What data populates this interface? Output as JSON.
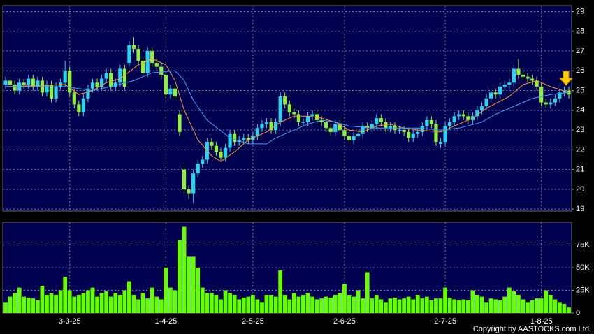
{
  "chart_data": [
    {
      "type": "candlestick",
      "up_color": "#2ad4f0",
      "down_color": "#8ef23c",
      "grid": true,
      "ylim": [
        18.9,
        29.3
      ],
      "yticks": [
        19,
        20,
        21,
        22,
        23,
        24,
        25,
        26,
        27,
        28,
        29
      ],
      "open": [
        25.3,
        25.5,
        25.3,
        25.0,
        25.4,
        25.3,
        25.6,
        25.2,
        25.5,
        24.9,
        25.3,
        24.6,
        25.2,
        25.4,
        26.0,
        24.9,
        24.3,
        23.9,
        24.6,
        25.1,
        25.4,
        25.2,
        25.6,
        25.9,
        25.2,
        25.4,
        26.1,
        26.4,
        27.3,
        27.1,
        26.5,
        25.9,
        27.0,
        26.4,
        26.2,
        25.8,
        24.8,
        25.1,
        23.8,
        21.0,
        20.0,
        19.8,
        20.8,
        21.3,
        21.5,
        22.4,
        22.2,
        21.9,
        21.6,
        22.1,
        22.8,
        22.4,
        22.5,
        22.6,
        22.5,
        22.7,
        23.1,
        23.3,
        23.4,
        23.0,
        23.4,
        24.7,
        24.3,
        23.9,
        23.8,
        23.4,
        23.4,
        23.7,
        23.8,
        23.5,
        23.4,
        23.1,
        22.9,
        23.3,
        23.0,
        22.7,
        22.5,
        22.7,
        22.8,
        23.2,
        23.1,
        23.3,
        23.6,
        23.4,
        23.1,
        23.2,
        23.0,
        23.0,
        22.9,
        22.6,
        22.8,
        22.9,
        23.2,
        23.5,
        23.3,
        22.3,
        22.4,
        23.2,
        23.4,
        23.7,
        23.8,
        23.7,
        23.5,
        23.7,
        24.0,
        24.2,
        24.6,
        24.9,
        24.8,
        25.2,
        25.3,
        25.4,
        26.1,
        25.8,
        25.7,
        25.6,
        25.5,
        25.2,
        24.4,
        24.3,
        24.4,
        24.6,
        24.9,
        25.0
      ],
      "high": [
        25.7,
        25.7,
        25.5,
        25.6,
        25.6,
        25.8,
        25.8,
        25.7,
        25.7,
        25.5,
        25.5,
        25.4,
        25.6,
        26.5,
        26.2,
        25.1,
        24.5,
        24.8,
        25.3,
        25.6,
        25.6,
        25.8,
        26.1,
        26.1,
        25.6,
        26.3,
        26.3,
        27.5,
        27.7,
        27.3,
        26.7,
        27.2,
        27.2,
        26.6,
        26.4,
        26.0,
        25.3,
        25.3,
        24.0,
        21.2,
        20.2,
        21.0,
        21.5,
        21.7,
        22.6,
        22.6,
        22.4,
        22.1,
        22.3,
        23.0,
        23.0,
        22.7,
        22.8,
        22.8,
        22.9,
        23.3,
        23.5,
        23.6,
        23.6,
        23.6,
        24.9,
        24.9,
        24.5,
        24.1,
        24.0,
        23.6,
        23.9,
        24.0,
        24.0,
        23.7,
        23.6,
        23.3,
        23.5,
        23.5,
        23.2,
        22.9,
        22.9,
        23.0,
        23.4,
        23.4,
        23.5,
        23.8,
        23.8,
        23.6,
        23.4,
        23.4,
        23.2,
        23.2,
        23.1,
        23.0,
        23.1,
        23.4,
        23.7,
        23.7,
        23.5,
        22.6,
        23.4,
        23.6,
        23.9,
        24.0,
        24.0,
        23.9,
        23.9,
        24.2,
        24.4,
        24.8,
        25.1,
        25.1,
        25.4,
        25.5,
        25.6,
        26.3,
        26.6,
        26.0,
        25.9,
        25.8,
        25.7,
        25.4,
        24.6,
        24.6,
        24.8,
        25.1,
        25.2,
        25.2
      ],
      "low": [
        25.1,
        25.1,
        24.8,
        24.8,
        25.1,
        25.1,
        25.0,
        25.0,
        24.7,
        24.7,
        24.4,
        24.4,
        25.0,
        25.2,
        24.7,
        24.1,
        23.7,
        23.7,
        24.4,
        24.9,
        25.0,
        25.0,
        25.4,
        25.0,
        25.0,
        25.2,
        25.0,
        26.2,
        26.9,
        26.3,
        25.7,
        25.7,
        26.2,
        26.0,
        25.6,
        24.6,
        24.6,
        24.5,
        22.7,
        19.8,
        19.5,
        19.3,
        20.6,
        21.1,
        21.3,
        22.0,
        21.7,
        21.4,
        21.4,
        21.9,
        22.2,
        22.2,
        22.3,
        22.3,
        22.3,
        22.5,
        22.9,
        23.1,
        22.8,
        22.8,
        23.2,
        24.1,
        23.7,
        23.6,
        23.2,
        23.2,
        23.2,
        23.5,
        23.3,
        23.2,
        22.9,
        22.7,
        22.7,
        22.8,
        22.5,
        22.3,
        22.3,
        22.5,
        22.6,
        22.9,
        22.9,
        23.1,
        23.2,
        22.9,
        22.9,
        22.8,
        22.8,
        22.7,
        22.4,
        22.4,
        22.6,
        22.7,
        23.0,
        23.1,
        22.2,
        22.1,
        22.2,
        23.0,
        23.2,
        23.5,
        23.5,
        23.3,
        23.3,
        23.5,
        23.8,
        24.0,
        24.4,
        24.6,
        24.6,
        25.0,
        25.1,
        25.2,
        25.6,
        25.5,
        25.4,
        25.3,
        25.0,
        24.2,
        24.1,
        24.1,
        24.2,
        24.4,
        24.7,
        24.6
      ],
      "close": [
        25.5,
        25.3,
        25.0,
        25.4,
        25.3,
        25.6,
        25.2,
        25.5,
        24.9,
        25.3,
        24.6,
        25.2,
        25.4,
        26.0,
        24.9,
        24.3,
        23.9,
        24.6,
        25.1,
        25.4,
        25.2,
        25.6,
        25.9,
        25.2,
        25.4,
        26.1,
        25.2,
        27.3,
        27.1,
        26.5,
        25.9,
        27.0,
        26.4,
        26.2,
        25.8,
        24.8,
        25.1,
        24.7,
        22.9,
        20.0,
        19.8,
        20.8,
        21.3,
        21.5,
        22.4,
        22.2,
        21.9,
        21.6,
        22.1,
        22.8,
        22.4,
        22.5,
        22.6,
        22.5,
        22.7,
        23.1,
        23.3,
        23.4,
        23.0,
        23.4,
        24.7,
        24.3,
        23.9,
        23.8,
        23.4,
        23.4,
        23.7,
        23.8,
        23.5,
        23.4,
        23.1,
        22.9,
        23.3,
        23.0,
        22.7,
        22.5,
        22.7,
        22.8,
        23.2,
        23.1,
        23.3,
        23.6,
        23.4,
        23.1,
        23.2,
        23.0,
        23.0,
        22.9,
        22.6,
        22.8,
        22.9,
        23.2,
        23.5,
        23.3,
        22.4,
        22.4,
        23.2,
        23.4,
        23.7,
        23.8,
        23.7,
        23.5,
        23.7,
        24.0,
        24.2,
        24.6,
        24.9,
        24.8,
        25.2,
        25.3,
        25.4,
        26.1,
        25.8,
        25.7,
        25.6,
        25.5,
        25.2,
        24.4,
        24.3,
        24.4,
        24.6,
        24.9,
        25.0,
        24.8
      ],
      "lines": [
        {
          "color": "#ff9933",
          "x": [
            0,
            13,
            16,
            19,
            22,
            25,
            29,
            32,
            35,
            37,
            39,
            42,
            45,
            47,
            50,
            53,
            57,
            60,
            63,
            66,
            69,
            72,
            75,
            78,
            81,
            84,
            87,
            90,
            95,
            99,
            102,
            105,
            110,
            113,
            116,
            119,
            123
          ],
          "values": [
            25.2,
            25.3,
            24.8,
            25.0,
            25.4,
            25.6,
            26.3,
            26.6,
            26.3,
            25.5,
            24.0,
            22.5,
            21.7,
            21.4,
            21.9,
            22.5,
            22.9,
            23.4,
            23.7,
            23.7,
            23.6,
            23.4,
            23.0,
            22.9,
            23.2,
            23.3,
            23.1,
            23.0,
            22.9,
            23.3,
            23.6,
            24.1,
            24.7,
            25.3,
            25.5,
            25.2,
            24.9
          ]
        },
        {
          "color": "#3fa0ff",
          "x": [
            0,
            13,
            19,
            23,
            28,
            32,
            37,
            39,
            41,
            44,
            49,
            53,
            57,
            59,
            63,
            66,
            69,
            72,
            75,
            80,
            84,
            90,
            95,
            99,
            104,
            107,
            110,
            115,
            119,
            123
          ],
          "values": [
            25.2,
            25.2,
            25.0,
            25.2,
            25.5,
            25.9,
            26.0,
            25.5,
            24.5,
            23.5,
            22.6,
            22.3,
            22.3,
            22.6,
            23.0,
            23.3,
            23.5,
            23.4,
            23.2,
            23.1,
            23.1,
            23.1,
            23.0,
            23.1,
            23.4,
            23.8,
            24.1,
            24.6,
            24.8,
            24.9
          ]
        }
      ]
    },
    {
      "type": "bar",
      "color": "#66ff00",
      "grid": true,
      "ylim": [
        0,
        100
      ],
      "yticks": [
        0,
        {
          "value": 25,
          "label": "25K"
        },
        {
          "value": 50,
          "label": "50K"
        },
        {
          "value": 75,
          "label": "75K"
        }
      ],
      "categories": [
        null,
        null,
        null,
        null,
        null,
        null,
        null,
        null,
        null,
        null,
        null,
        null,
        null,
        null,
        "3-3-25",
        null,
        null,
        null,
        null,
        null,
        null,
        null,
        null,
        null,
        null,
        null,
        null,
        null,
        null,
        null,
        null,
        null,
        null,
        null,
        null,
        "1-4-25",
        null,
        null,
        null,
        null,
        null,
        null,
        null,
        null,
        null,
        null,
        null,
        null,
        null,
        null,
        null,
        null,
        null,
        null,
        "2-5-25",
        null,
        null,
        null,
        null,
        null,
        null,
        null,
        null,
        null,
        null,
        null,
        null,
        null,
        null,
        null,
        null,
        null,
        null,
        null,
        "2-6-25",
        null,
        null,
        null,
        null,
        null,
        null,
        null,
        null,
        null,
        null,
        null,
        null,
        null,
        null,
        null,
        null,
        null,
        null,
        null,
        null,
        null,
        "2-7-25",
        null,
        null,
        null,
        null,
        null,
        null,
        null,
        null,
        null,
        null,
        null,
        null,
        null,
        null,
        null,
        null,
        null,
        null,
        null,
        null,
        "1-8-25",
        null,
        null,
        null,
        null,
        null,
        null
      ],
      "values": [
        12,
        18,
        22,
        28,
        18,
        17,
        16,
        14,
        30,
        20,
        22,
        20,
        25,
        40,
        25,
        18,
        20,
        22,
        25,
        28,
        18,
        22,
        24,
        18,
        22,
        20,
        25,
        35,
        20,
        15,
        22,
        16,
        28,
        18,
        15,
        50,
        28,
        25,
        80,
        95,
        62,
        62,
        50,
        28,
        22,
        22,
        20,
        15,
        25,
        22,
        20,
        15,
        17,
        18,
        20,
        15,
        12,
        20,
        20,
        18,
        47,
        20,
        15,
        22,
        18,
        20,
        22,
        18,
        15,
        16,
        18,
        17,
        20,
        22,
        32,
        20,
        18,
        25,
        16,
        45,
        16,
        20,
        15,
        12,
        16,
        17,
        15,
        16,
        18,
        15,
        20,
        16,
        18,
        14,
        16,
        16,
        28,
        17,
        15,
        14,
        15,
        14,
        25,
        20,
        18,
        12,
        16,
        15,
        14,
        18,
        28,
        24,
        20,
        15,
        12,
        14,
        16,
        16,
        25,
        20,
        15,
        12,
        10,
        6
      ]
    }
  ],
  "copyright": "Copyright by AASTOCKS.com Ltd."
}
